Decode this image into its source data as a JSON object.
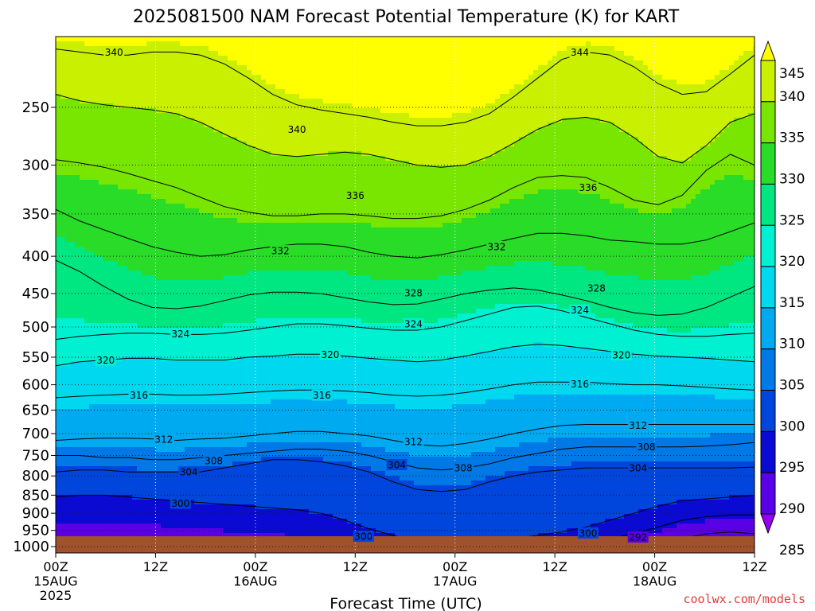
{
  "chart_data": {
    "type": "heatmap",
    "title": "2025081500 NAM Forecast Potential Temperature (K) for KART",
    "xlabel": "Forecast Time (UTC)",
    "ylabel": "",
    "credit": "coolwx.com/models",
    "x_ticks": [
      {
        "label": "00Z",
        "sub": "15AUG",
        "year": "2025",
        "hours": 0
      },
      {
        "label": "12Z",
        "sub": "",
        "hours": 12
      },
      {
        "label": "00Z",
        "sub": "16AUG",
        "hours": 24
      },
      {
        "label": "12Z",
        "sub": "",
        "hours": 36
      },
      {
        "label": "00Z",
        "sub": "17AUG",
        "hours": 48
      },
      {
        "label": "12Z",
        "sub": "",
        "hours": 60
      },
      {
        "label": "00Z",
        "sub": "18AUG",
        "hours": 72
      },
      {
        "label": "12Z",
        "sub": "",
        "hours": 84
      }
    ],
    "xlim": [
      0,
      84
    ],
    "y_ticks": [
      250,
      300,
      350,
      400,
      450,
      500,
      550,
      600,
      650,
      700,
      750,
      800,
      850,
      900,
      950,
      1000
    ],
    "ylim": [
      200,
      1020
    ],
    "yscale": "log-pressure (inverted)",
    "colorbar": {
      "labels": [
        345,
        340,
        335,
        330,
        325,
        320,
        315,
        310,
        305,
        300,
        295,
        290,
        285
      ],
      "bins": [
        {
          "min": 345,
          "max": 350,
          "color": "#ffff00"
        },
        {
          "min": 340,
          "max": 345,
          "color": "#c8f000"
        },
        {
          "min": 335,
          "max": 340,
          "color": "#78e600"
        },
        {
          "min": 330,
          "max": 335,
          "color": "#28dc28"
        },
        {
          "min": 325,
          "max": 330,
          "color": "#00e680"
        },
        {
          "min": 320,
          "max": 325,
          "color": "#00f0d2"
        },
        {
          "min": 315,
          "max": 320,
          "color": "#00d8f0"
        },
        {
          "min": 310,
          "max": 315,
          "color": "#00aaf0"
        },
        {
          "min": 305,
          "max": 310,
          "color": "#0078e6"
        },
        {
          "min": 300,
          "max": 305,
          "color": "#0046dc"
        },
        {
          "min": 295,
          "max": 300,
          "color": "#0a0ad2"
        },
        {
          "min": 290,
          "max": 295,
          "color": "#5a00e6"
        },
        {
          "min": 285,
          "max": 290,
          "color": "#9600f0"
        }
      ]
    },
    "ground_color": "#a0522d",
    "grid": true,
    "contour_interval": 4,
    "isentropes": [
      {
        "theta": 292,
        "p": [
          null,
          null,
          null,
          null,
          null,
          null,
          null,
          null,
          null,
          null,
          null,
          null,
          null,
          null,
          null,
          null,
          null,
          null,
          null,
          null,
          null,
          null,
          null,
          null,
          null,
          null,
          975,
          960,
          955,
          960
        ]
      },
      {
        "theta": 296,
        "p": [
          null,
          null,
          null,
          null,
          null,
          null,
          null,
          null,
          null,
          null,
          null,
          null,
          null,
          null,
          null,
          null,
          null,
          null,
          null,
          null,
          null,
          null,
          985,
          975,
          960,
          940,
          920,
          910,
          905,
          905
        ]
      },
      {
        "theta": 300,
        "p": [
          855,
          850,
          850,
          855,
          860,
          865,
          870,
          875,
          880,
          885,
          890,
          900,
          920,
          945,
          965,
          985,
          995,
          1000,
          990,
          975,
          965,
          955,
          940,
          920,
          900,
          880,
          865,
          860,
          855,
          850
        ]
      },
      {
        "theta": 304,
        "p": [
          790,
          785,
          785,
          790,
          790,
          790,
          790,
          780,
          770,
          760,
          760,
          765,
          775,
          790,
          815,
          835,
          840,
          835,
          815,
          800,
          790,
          785,
          780,
          780,
          780,
          780,
          780,
          780,
          780,
          778
        ]
      },
      {
        "theta": 308,
        "p": [
          750,
          750,
          755,
          755,
          760,
          760,
          755,
          750,
          745,
          740,
          735,
          735,
          740,
          750,
          765,
          780,
          785,
          780,
          770,
          755,
          745,
          735,
          730,
          730,
          730,
          730,
          730,
          728,
          725,
          720
        ]
      },
      {
        "theta": 312,
        "p": [
          715,
          712,
          710,
          710,
          712,
          715,
          712,
          710,
          705,
          700,
          695,
          695,
          700,
          705,
          715,
          725,
          728,
          722,
          712,
          700,
          690,
          682,
          680,
          680,
          680,
          680,
          680,
          680,
          680,
          680
        ]
      },
      {
        "theta": 316,
        "p": [
          625,
          622,
          620,
          618,
          618,
          620,
          620,
          618,
          615,
          612,
          610,
          610,
          612,
          615,
          620,
          622,
          620,
          615,
          608,
          600,
          595,
          595,
          595,
          598,
          600,
          600,
          602,
          605,
          608,
          610
        ]
      },
      {
        "theta": 320,
        "p": [
          565,
          558,
          555,
          552,
          552,
          555,
          555,
          555,
          550,
          548,
          545,
          545,
          548,
          552,
          555,
          558,
          555,
          548,
          540,
          532,
          528,
          530,
          535,
          540,
          545,
          548,
          550,
          552,
          555,
          558
        ]
      },
      {
        "theta": 324,
        "p": [
          520,
          515,
          512,
          510,
          510,
          512,
          512,
          510,
          505,
          500,
          495,
          495,
          498,
          502,
          505,
          505,
          500,
          490,
          480,
          470,
          468,
          475,
          485,
          495,
          505,
          512,
          515,
          515,
          512,
          510
        ]
      },
      {
        "theta": 328,
        "p": [
          405,
          420,
          440,
          458,
          470,
          472,
          468,
          460,
          452,
          448,
          448,
          450,
          456,
          462,
          466,
          465,
          458,
          450,
          445,
          442,
          445,
          452,
          460,
          470,
          478,
          482,
          480,
          470,
          455,
          440
        ]
      },
      {
        "theta": 332,
        "p": [
          345,
          358,
          368,
          378,
          388,
          395,
          400,
          398,
          392,
          388,
          385,
          385,
          388,
          395,
          400,
          402,
          398,
          392,
          385,
          378,
          372,
          372,
          375,
          380,
          382,
          385,
          385,
          380,
          370,
          360
        ]
      },
      {
        "theta": 336,
        "p": [
          295,
          298,
          302,
          308,
          315,
          322,
          332,
          342,
          348,
          352,
          352,
          350,
          350,
          352,
          355,
          355,
          352,
          345,
          335,
          322,
          312,
          310,
          312,
          322,
          335,
          340,
          330,
          305,
          290,
          300
        ]
      },
      {
        "theta": 340,
        "p": [
          240,
          245,
          248,
          250,
          252,
          255,
          262,
          272,
          282,
          290,
          292,
          290,
          288,
          290,
          295,
          300,
          302,
          300,
          292,
          280,
          268,
          260,
          258,
          262,
          275,
          292,
          298,
          282,
          262,
          255
        ]
      },
      {
        "theta": 344,
        "p": [
          208,
          210,
          212,
          212,
          210,
          210,
          212,
          218,
          228,
          240,
          248,
          252,
          255,
          258,
          262,
          265,
          265,
          262,
          255,
          242,
          228,
          215,
          210,
          212,
          220,
          232,
          240,
          238,
          225,
          212
        ]
      }
    ],
    "contour_labels": [
      {
        "text": "340",
        "h": 7,
        "p": 210
      },
      {
        "text": "344",
        "h": 63,
        "p": 210
      },
      {
        "text": "340",
        "h": 29,
        "p": 268
      },
      {
        "text": "336",
        "h": 36,
        "p": 330
      },
      {
        "text": "336",
        "h": 64,
        "p": 322
      },
      {
        "text": "332",
        "h": 27,
        "p": 393
      },
      {
        "text": "332",
        "h": 53,
        "p": 388
      },
      {
        "text": "328",
        "h": 43,
        "p": 449
      },
      {
        "text": "328",
        "h": 65,
        "p": 442
      },
      {
        "text": "324",
        "h": 15,
        "p": 511
      },
      {
        "text": "324",
        "h": 43,
        "p": 495
      },
      {
        "text": "324",
        "h": 63,
        "p": 474
      },
      {
        "text": "320",
        "h": 6,
        "p": 555
      },
      {
        "text": "320",
        "h": 33,
        "p": 545
      },
      {
        "text": "320",
        "h": 68,
        "p": 546
      },
      {
        "text": "316",
        "h": 10,
        "p": 620
      },
      {
        "text": "316",
        "h": 32,
        "p": 620
      },
      {
        "text": "316",
        "h": 63,
        "p": 598
      },
      {
        "text": "312",
        "h": 13,
        "p": 712
      },
      {
        "text": "312",
        "h": 43,
        "p": 718
      },
      {
        "text": "312",
        "h": 70,
        "p": 682
      },
      {
        "text": "308",
        "h": 19,
        "p": 762
      },
      {
        "text": "308",
        "h": 49,
        "p": 780
      },
      {
        "text": "308",
        "h": 71,
        "p": 730
      },
      {
        "text": "304",
        "h": 16,
        "p": 790
      },
      {
        "text": "304",
        "h": 41,
        "p": 772
      },
      {
        "text": "304",
        "h": 70,
        "p": 780
      },
      {
        "text": "300",
        "h": 15,
        "p": 872
      },
      {
        "text": "300",
        "h": 37,
        "p": 968
      },
      {
        "text": "300",
        "h": 64,
        "p": 958
      },
      {
        "text": "292",
        "h": 70,
        "p": 970
      }
    ]
  }
}
